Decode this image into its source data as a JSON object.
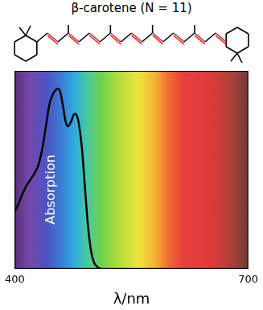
{
  "chart_data": {
    "type": "line",
    "title": "β-carotene (N = 11)",
    "x_label": "λ/nm",
    "annotation": "Absorption",
    "x": [
      400,
      405,
      410,
      415,
      420,
      425,
      430,
      435,
      440,
      445,
      450,
      455,
      458,
      462,
      465,
      468,
      472,
      476,
      479,
      482,
      486,
      490,
      494,
      498,
      502,
      506,
      510
    ],
    "values": [
      0.29,
      0.33,
      0.38,
      0.42,
      0.45,
      0.48,
      0.52,
      0.6,
      0.72,
      0.84,
      0.89,
      0.91,
      0.9,
      0.82,
      0.75,
      0.72,
      0.74,
      0.78,
      0.78,
      0.74,
      0.62,
      0.42,
      0.22,
      0.09,
      0.03,
      0.01,
      0
    ],
    "color": "#000000",
    "xlim": [
      400,
      700
    ],
    "xticks": [
      400,
      700
    ],
    "ylim": [
      0,
      1
    ],
    "grid": false,
    "tick_labels": "x"
  }
}
